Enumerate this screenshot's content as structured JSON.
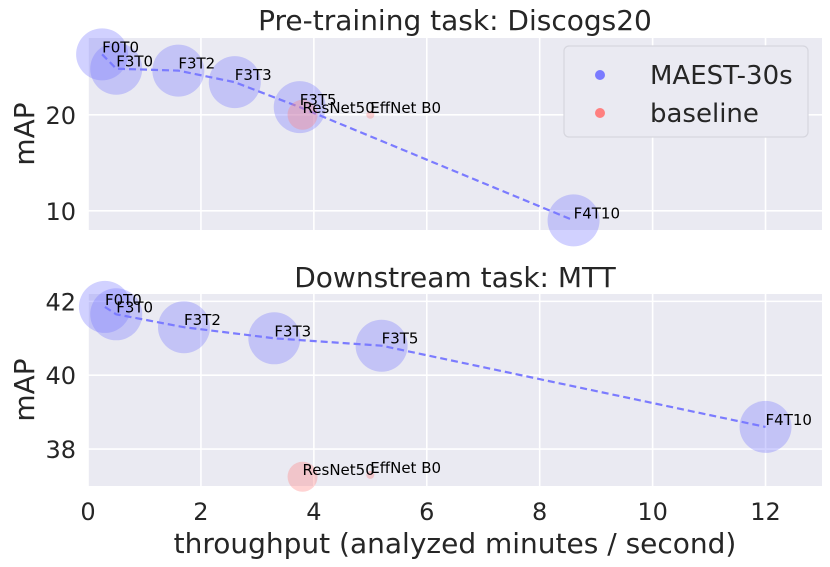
{
  "chart_data": [
    {
      "type": "scatter",
      "title": "Pre-training task: Discogs20",
      "xlabel": "",
      "ylabel": "mAP",
      "xlim": [
        0,
        13
      ],
      "ylim": [
        8,
        28
      ],
      "yticks": [
        10,
        20
      ],
      "grid": true,
      "legend": {
        "placement": "top-right",
        "entries": [
          "MAEST-30s",
          "baseline"
        ]
      },
      "series": [
        {
          "name": "MAEST-30s",
          "color": "#7b7bff",
          "line": "dashed",
          "points": [
            {
              "label": "F0T0",
              "x": 0.25,
              "y": 26.3
            },
            {
              "label": "F3T0",
              "x": 0.5,
              "y": 24.8
            },
            {
              "label": "F3T2",
              "x": 1.6,
              "y": 24.6
            },
            {
              "label": "F3T3",
              "x": 2.6,
              "y": 23.4
            },
            {
              "label": "F3T5",
              "x": 3.75,
              "y": 20.8
            },
            {
              "label": "F4T10",
              "x": 8.6,
              "y": 9.0
            }
          ]
        },
        {
          "name": "baseline",
          "color": "#ff8080",
          "points": [
            {
              "label": "ResNet50",
              "x": 3.8,
              "y": 20.0
            },
            {
              "label": "EffNet B0",
              "x": 5.0,
              "y": 20.0
            }
          ]
        }
      ]
    },
    {
      "type": "scatter",
      "title": "Downstream task: MTT",
      "xlabel": "throughput (analyzed minutes / second)",
      "ylabel": "mAP",
      "xlim": [
        0,
        13
      ],
      "ylim": [
        37,
        42.2
      ],
      "yticks": [
        38,
        40,
        42
      ],
      "xticks": [
        0,
        2,
        4,
        6,
        8,
        10,
        12
      ],
      "grid": true,
      "series": [
        {
          "name": "MAEST-30s",
          "color": "#7b7bff",
          "line": "dashed",
          "points": [
            {
              "label": "F0T0",
              "x": 0.3,
              "y": 41.85
            },
            {
              "label": "F3T0",
              "x": 0.5,
              "y": 41.65
            },
            {
              "label": "F3T2",
              "x": 1.7,
              "y": 41.3
            },
            {
              "label": "F3T3",
              "x": 3.3,
              "y": 41.0
            },
            {
              "label": "F3T5",
              "x": 5.2,
              "y": 40.8
            },
            {
              "label": "F4T10",
              "x": 12.0,
              "y": 38.6
            }
          ]
        },
        {
          "name": "baseline",
          "color": "#ff8080",
          "points": [
            {
              "label": "ResNet50",
              "x": 3.8,
              "y": 37.25
            },
            {
              "label": "EffNet B0",
              "x": 5.0,
              "y": 37.3
            }
          ]
        }
      ]
    }
  ]
}
